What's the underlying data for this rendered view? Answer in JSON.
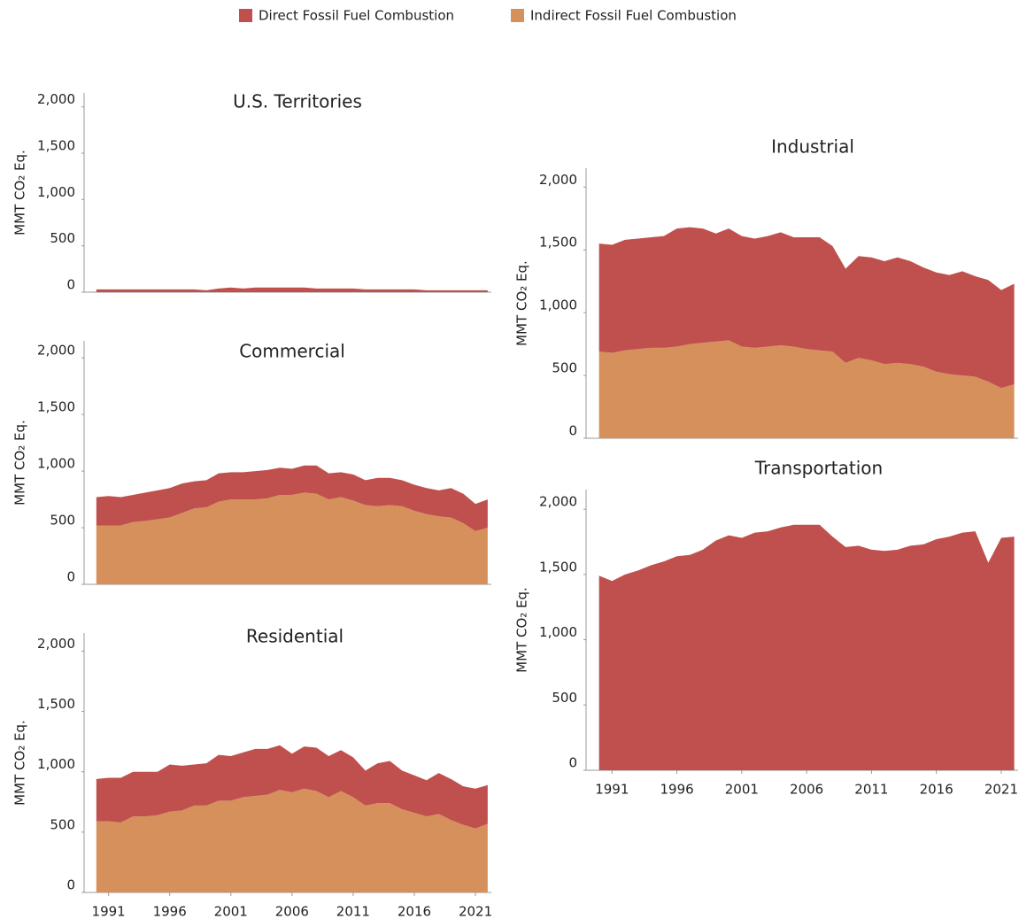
{
  "chart_data": [
    {
      "type": "area",
      "title": "U.S. Territories",
      "ylabel": "MMT CO₂ Eq.",
      "x": [
        1990,
        1991,
        1992,
        1993,
        1994,
        1995,
        1996,
        1997,
        1998,
        1999,
        2000,
        2001,
        2002,
        2003,
        2004,
        2005,
        2006,
        2007,
        2008,
        2009,
        2010,
        2011,
        2012,
        2013,
        2014,
        2015,
        2016,
        2017,
        2018,
        2019,
        2020,
        2021,
        2022
      ],
      "xlim": [
        1989,
        2022.3
      ],
      "ylim": [
        0,
        2150
      ],
      "yticks": [
        0,
        500,
        {
          "value": 1000,
          "label": "1,000"
        },
        {
          "value": 1500,
          "label": "1,500"
        },
        {
          "value": 2000,
          "label": "2,000"
        }
      ],
      "series": [
        {
          "name": "Direct Fossil Fuel Combustion",
          "color": "#c0504d",
          "values": [
            30,
            30,
            30,
            30,
            30,
            30,
            30,
            30,
            30,
            20,
            40,
            50,
            40,
            50,
            50,
            50,
            50,
            50,
            40,
            40,
            40,
            40,
            30,
            30,
            30,
            30,
            30,
            20,
            20,
            20,
            20,
            20,
            20
          ]
        }
      ]
    },
    {
      "type": "area",
      "title": "Commercial",
      "ylabel": "MMT CO₂ Eq.",
      "x": [
        1990,
        1991,
        1992,
        1993,
        1994,
        1995,
        1996,
        1997,
        1998,
        1999,
        2000,
        2001,
        2002,
        2003,
        2004,
        2005,
        2006,
        2007,
        2008,
        2009,
        2010,
        2011,
        2012,
        2013,
        2014,
        2015,
        2016,
        2017,
        2018,
        2019,
        2020,
        2021,
        2022
      ],
      "xlim": [
        1989,
        2022.3
      ],
      "ylim": [
        0,
        2150
      ],
      "yticks": [
        0,
        500,
        {
          "value": 1000,
          "label": "1,000"
        },
        {
          "value": 1500,
          "label": "1,500"
        },
        {
          "value": 2000,
          "label": "2,000"
        }
      ],
      "series": [
        {
          "name": "Direct Fossil Fuel Combustion",
          "color": "#c0504d",
          "values": [
            250,
            260,
            250,
            240,
            250,
            255,
            260,
            260,
            240,
            240,
            250,
            240,
            240,
            250,
            250,
            240,
            230,
            240,
            250,
            230,
            220,
            230,
            220,
            250,
            240,
            230,
            230,
            230,
            230,
            260,
            260,
            240,
            250
          ]
        },
        {
          "name": "Indirect Fossil Fuel Combustion",
          "color": "#d6905c",
          "values": [
            520,
            520,
            520,
            550,
            560,
            575,
            590,
            630,
            670,
            680,
            730,
            750,
            750,
            750,
            760,
            790,
            790,
            810,
            800,
            750,
            770,
            740,
            700,
            690,
            700,
            690,
            650,
            620,
            600,
            590,
            540,
            470,
            500
          ]
        }
      ]
    },
    {
      "type": "area",
      "title": "Residential",
      "ylabel": "MMT CO₂ Eq.",
      "x": [
        1990,
        1991,
        1992,
        1993,
        1994,
        1995,
        1996,
        1997,
        1998,
        1999,
        2000,
        2001,
        2002,
        2003,
        2004,
        2005,
        2006,
        2007,
        2008,
        2009,
        2010,
        2011,
        2012,
        2013,
        2014,
        2015,
        2016,
        2017,
        2018,
        2019,
        2020,
        2021,
        2022
      ],
      "xlim": [
        1989,
        2022.3
      ],
      "ylim": [
        0,
        2150
      ],
      "xticks": [
        1991,
        1996,
        2001,
        2006,
        2011,
        2016,
        2021
      ],
      "yticks": [
        0,
        500,
        {
          "value": 1000,
          "label": "1,000"
        },
        {
          "value": 1500,
          "label": "1,500"
        },
        {
          "value": 2000,
          "label": "2,000"
        }
      ],
      "series": [
        {
          "name": "Direct Fossil Fuel Combustion",
          "color": "#c0504d",
          "values": [
            350,
            360,
            370,
            370,
            370,
            360,
            390,
            370,
            340,
            350,
            380,
            370,
            370,
            390,
            380,
            370,
            320,
            350,
            360,
            340,
            340,
            330,
            290,
            330,
            350,
            320,
            310,
            300,
            340,
            340,
            320,
            330,
            320
          ]
        },
        {
          "name": "Indirect Fossil Fuel Combustion",
          "color": "#d6905c",
          "values": [
            590,
            590,
            580,
            630,
            630,
            640,
            670,
            680,
            720,
            720,
            760,
            760,
            790,
            800,
            810,
            850,
            830,
            860,
            840,
            790,
            840,
            790,
            720,
            740,
            740,
            690,
            660,
            630,
            650,
            600,
            560,
            530,
            570
          ]
        }
      ]
    },
    {
      "type": "area",
      "title": "Industrial",
      "ylabel": "MMT CO₂ Eq.",
      "x": [
        1990,
        1991,
        1992,
        1993,
        1994,
        1995,
        1996,
        1997,
        1998,
        1999,
        2000,
        2001,
        2002,
        2003,
        2004,
        2005,
        2006,
        2007,
        2008,
        2009,
        2010,
        2011,
        2012,
        2013,
        2014,
        2015,
        2016,
        2017,
        2018,
        2019,
        2020,
        2021,
        2022
      ],
      "xlim": [
        1989,
        2022.3
      ],
      "ylim": [
        0,
        2150
      ],
      "yticks": [
        0,
        500,
        {
          "value": 1000,
          "label": "1,000"
        },
        {
          "value": 1500,
          "label": "1,500"
        },
        {
          "value": 2000,
          "label": "2,000"
        }
      ],
      "series": [
        {
          "name": "Direct Fossil Fuel Combustion",
          "color": "#c0504d",
          "values": [
            860,
            860,
            880,
            880,
            880,
            890,
            940,
            930,
            910,
            860,
            890,
            880,
            870,
            880,
            900,
            870,
            890,
            900,
            840,
            750,
            810,
            820,
            820,
            840,
            820,
            790,
            790,
            790,
            830,
            800,
            810,
            780,
            800
          ]
        },
        {
          "name": "Indirect Fossil Fuel Combustion",
          "color": "#d6905c",
          "values": [
            690,
            680,
            700,
            710,
            720,
            720,
            730,
            750,
            760,
            770,
            780,
            730,
            720,
            730,
            740,
            730,
            710,
            700,
            690,
            600,
            640,
            620,
            590,
            600,
            590,
            570,
            530,
            510,
            500,
            490,
            450,
            400,
            430
          ]
        }
      ]
    },
    {
      "type": "area",
      "title": "Transportation",
      "ylabel": "MMT CO₂ Eq.",
      "x": [
        1990,
        1991,
        1992,
        1993,
        1994,
        1995,
        1996,
        1997,
        1998,
        1999,
        2000,
        2001,
        2002,
        2003,
        2004,
        2005,
        2006,
        2007,
        2008,
        2009,
        2010,
        2011,
        2012,
        2013,
        2014,
        2015,
        2016,
        2017,
        2018,
        2019,
        2020,
        2021,
        2022
      ],
      "xlim": [
        1989,
        2022.3
      ],
      "ylim": [
        0,
        2150
      ],
      "xticks": [
        1991,
        1996,
        2001,
        2006,
        2011,
        2016,
        2021
      ],
      "yticks": [
        0,
        500,
        {
          "value": 1000,
          "label": "1,000"
        },
        {
          "value": 1500,
          "label": "1,500"
        },
        {
          "value": 2000,
          "label": "2,000"
        }
      ],
      "series": [
        {
          "name": "Direct Fossil Fuel Combustion",
          "color": "#c0504d",
          "values": [
            1490,
            1450,
            1500,
            1530,
            1570,
            1600,
            1640,
            1650,
            1690,
            1760,
            1800,
            1780,
            1820,
            1830,
            1860,
            1880,
            1880,
            1880,
            1790,
            1710,
            1720,
            1690,
            1680,
            1690,
            1720,
            1730,
            1770,
            1790,
            1820,
            1830,
            1590,
            1780,
            1790
          ]
        }
      ]
    }
  ]
}
